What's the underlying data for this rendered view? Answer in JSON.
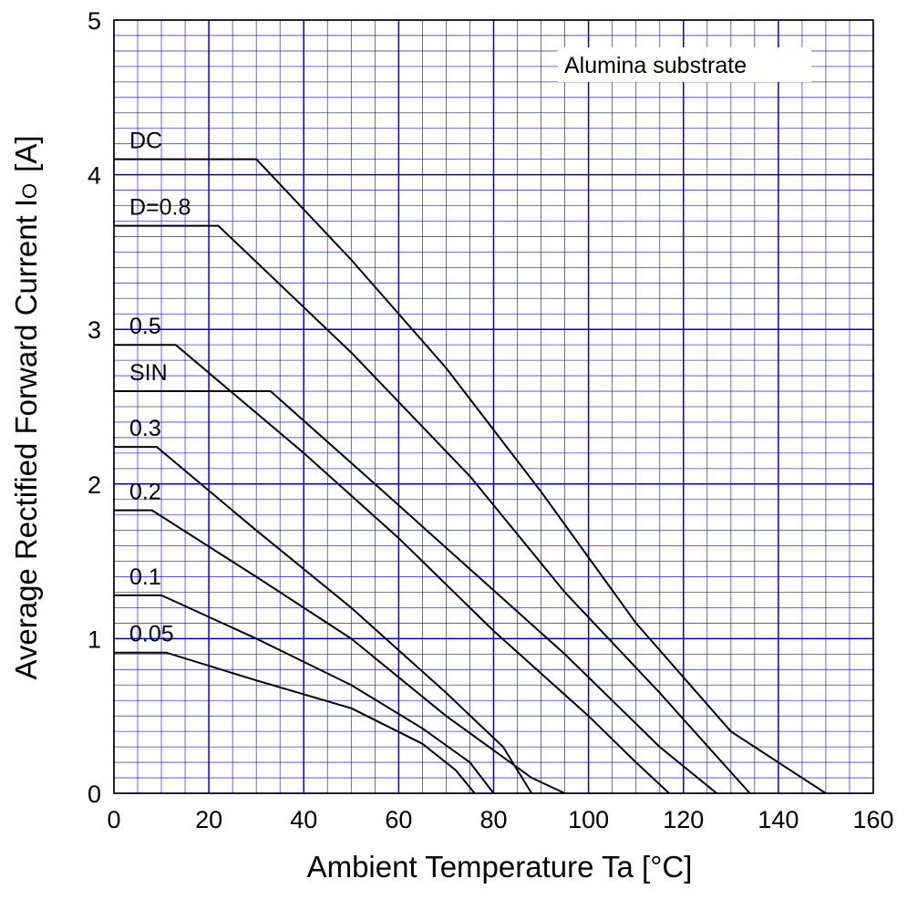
{
  "chart_data": {
    "type": "line",
    "xlabel": "Ambient Temperature   Ta   [°C]",
    "ylabel_main": "Average Rectified Forward Current  I",
    "ylabel_sub": "O",
    "ylabel_unit": "[A]",
    "annotation": "Alumina  substrate",
    "xlim": [
      0,
      160
    ],
    "ylim": [
      0,
      5
    ],
    "x_ticks": [
      "0",
      "20",
      "40",
      "60",
      "80",
      "100",
      "120",
      "140",
      "160"
    ],
    "y_ticks": [
      "0",
      "1",
      "2",
      "3",
      "4",
      "5"
    ],
    "grid": true,
    "colors": {
      "grid": "#0000cc",
      "curve": "#000000"
    },
    "series": [
      {
        "name": "DC",
        "label": "DC",
        "points": [
          [
            0,
            4.1
          ],
          [
            30,
            4.1
          ],
          [
            50,
            3.45
          ],
          [
            70,
            2.75
          ],
          [
            90,
            1.95
          ],
          [
            110,
            1.1
          ],
          [
            130,
            0.4
          ],
          [
            150,
            0
          ]
        ]
      },
      {
        "name": "D=0.8",
        "label": "D=0.8",
        "points": [
          [
            0,
            3.67
          ],
          [
            22,
            3.67
          ],
          [
            50,
            2.85
          ],
          [
            75,
            2.05
          ],
          [
            95,
            1.3
          ],
          [
            115,
            0.65
          ],
          [
            134,
            0
          ]
        ]
      },
      {
        "name": "0.5",
        "label": "0.5",
        "points": [
          [
            0,
            2.9
          ],
          [
            13,
            2.9
          ],
          [
            40,
            2.2
          ],
          [
            60,
            1.65
          ],
          [
            80,
            1.05
          ],
          [
            100,
            0.5
          ],
          [
            110,
            0.2
          ],
          [
            117,
            0
          ]
        ]
      },
      {
        "name": "SIN",
        "label": "SIN",
        "points": [
          [
            0,
            2.6
          ],
          [
            33,
            2.6
          ],
          [
            55,
            2.0
          ],
          [
            75,
            1.45
          ],
          [
            95,
            0.9
          ],
          [
            115,
            0.3
          ],
          [
            127,
            0
          ]
        ]
      },
      {
        "name": "0.3",
        "label": "0.3",
        "points": [
          [
            0,
            2.24
          ],
          [
            9,
            2.24
          ],
          [
            30,
            1.7
          ],
          [
            50,
            1.2
          ],
          [
            70,
            0.65
          ],
          [
            82,
            0.3
          ],
          [
            88,
            0
          ]
        ]
      },
      {
        "name": "0.2",
        "label": "0.2",
        "points": [
          [
            0,
            1.83
          ],
          [
            8,
            1.83
          ],
          [
            30,
            1.4
          ],
          [
            50,
            1.0
          ],
          [
            70,
            0.5
          ],
          [
            88,
            0.1
          ],
          [
            95,
            0
          ]
        ]
      },
      {
        "name": "0.1",
        "label": "0.1",
        "points": [
          [
            0,
            1.28
          ],
          [
            10,
            1.28
          ],
          [
            30,
            1.0
          ],
          [
            50,
            0.7
          ],
          [
            65,
            0.42
          ],
          [
            75,
            0.2
          ],
          [
            80,
            0
          ]
        ]
      },
      {
        "name": "0.05",
        "label": "0.05",
        "points": [
          [
            0,
            0.91
          ],
          [
            11,
            0.91
          ],
          [
            30,
            0.73
          ],
          [
            50,
            0.55
          ],
          [
            65,
            0.32
          ],
          [
            72,
            0.15
          ],
          [
            76,
            0
          ]
        ]
      }
    ]
  }
}
